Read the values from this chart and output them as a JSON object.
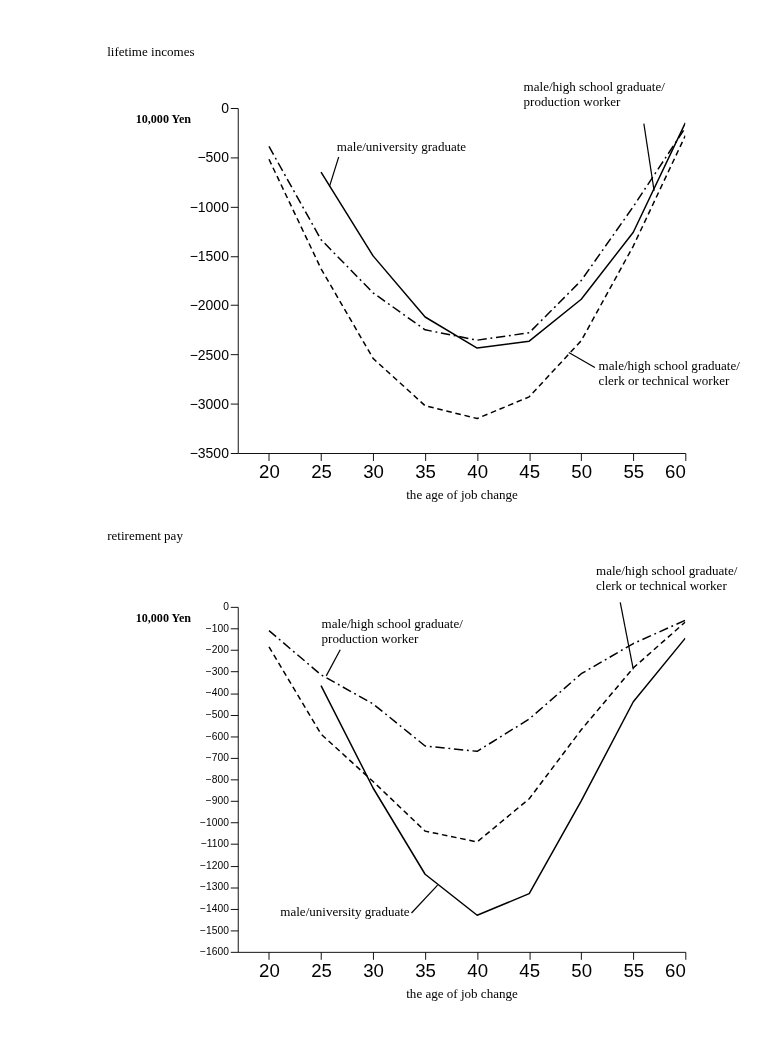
{
  "chart_data": [
    {
      "type": "line",
      "title": "lifetime incomes",
      "ylabel": "10,000 Yen",
      "xlabel": "the age of job change",
      "x": [
        20,
        25,
        30,
        35,
        40,
        45,
        50,
        55,
        60
      ],
      "xlim": [
        17,
        60
      ],
      "xticks": [
        20,
        25,
        30,
        35,
        40,
        45,
        50,
        55,
        60
      ],
      "ylim": [
        -3500,
        0
      ],
      "yticks": [
        -3500,
        -3000,
        -2500,
        -2000,
        -1500,
        -1000,
        -500,
        0
      ],
      "grid": false,
      "legend": false,
      "marker": "none",
      "series": [
        {
          "color": "#000000",
          "line_style": "solid",
          "values": [
            null,
            -650,
            -1500,
            -2120,
            -2435,
            -2365,
            -1940,
            -1260,
            -150
          ]
        },
        {
          "color": "#000000",
          "line_style": "dashdot",
          "values": [
            -390,
            -1335,
            -1875,
            -2250,
            -2355,
            -2280,
            -1750,
            -1000,
            -200
          ]
        },
        {
          "color": "#000000",
          "line_style": "dashed",
          "values": [
            -520,
            -1630,
            -2540,
            -3020,
            -3150,
            -2930,
            -2360,
            -1400,
            -280
          ]
        }
      ],
      "annotations": [
        {
          "text": "male/university graduate",
          "x": 25.8,
          "y": -800
        },
        {
          "text": "male/high school graduate/\nproduction worker",
          "x": 57,
          "y": -840
        },
        {
          "text": "male/high school graduate/\nclerk or technical worker",
          "x": 48.8,
          "y": -2480
        }
      ]
    },
    {
      "type": "line",
      "title": "retirement pay",
      "ylabel": "10,000 Yen",
      "xlabel": "the age of job change",
      "x": [
        20,
        25,
        30,
        35,
        40,
        45,
        50,
        55,
        60
      ],
      "xlim": [
        17,
        60
      ],
      "xticks": [
        20,
        25,
        30,
        35,
        40,
        45,
        50,
        55,
        60
      ],
      "ylim": [
        -1600,
        0
      ],
      "yticks": [
        -1600,
        -1500,
        -1400,
        -1300,
        -1200,
        -1100,
        -1000,
        -900,
        -800,
        -700,
        -600,
        -500,
        -400,
        -300,
        -200,
        -100,
        0
      ],
      "grid": false,
      "legend": false,
      "marker": "none",
      "series": [
        {
          "color": "#000000",
          "line_style": "solid",
          "values": [
            null,
            -365,
            -840,
            -1240,
            -1430,
            -1330,
            -900,
            -440,
            -145
          ]
        },
        {
          "color": "#000000",
          "line_style": "dashdot",
          "values": [
            -110,
            -315,
            -450,
            -645,
            -670,
            -520,
            -310,
            -170,
            -62
          ]
        },
        {
          "color": "#000000",
          "line_style": "dashed",
          "values": [
            -185,
            -590,
            -810,
            -1040,
            -1090,
            -890,
            -570,
            -283,
            -70
          ]
        }
      ],
      "annotations": [
        {
          "text": "male/high school graduate/\nproduction worker",
          "x": 25.5,
          "y": -320
        },
        {
          "text": "male/university graduate",
          "x": 36.2,
          "y": -1290
        },
        {
          "text": "male/high school graduate/\nclerk or technical worker",
          "x": 55,
          "y": -290
        }
      ]
    }
  ]
}
